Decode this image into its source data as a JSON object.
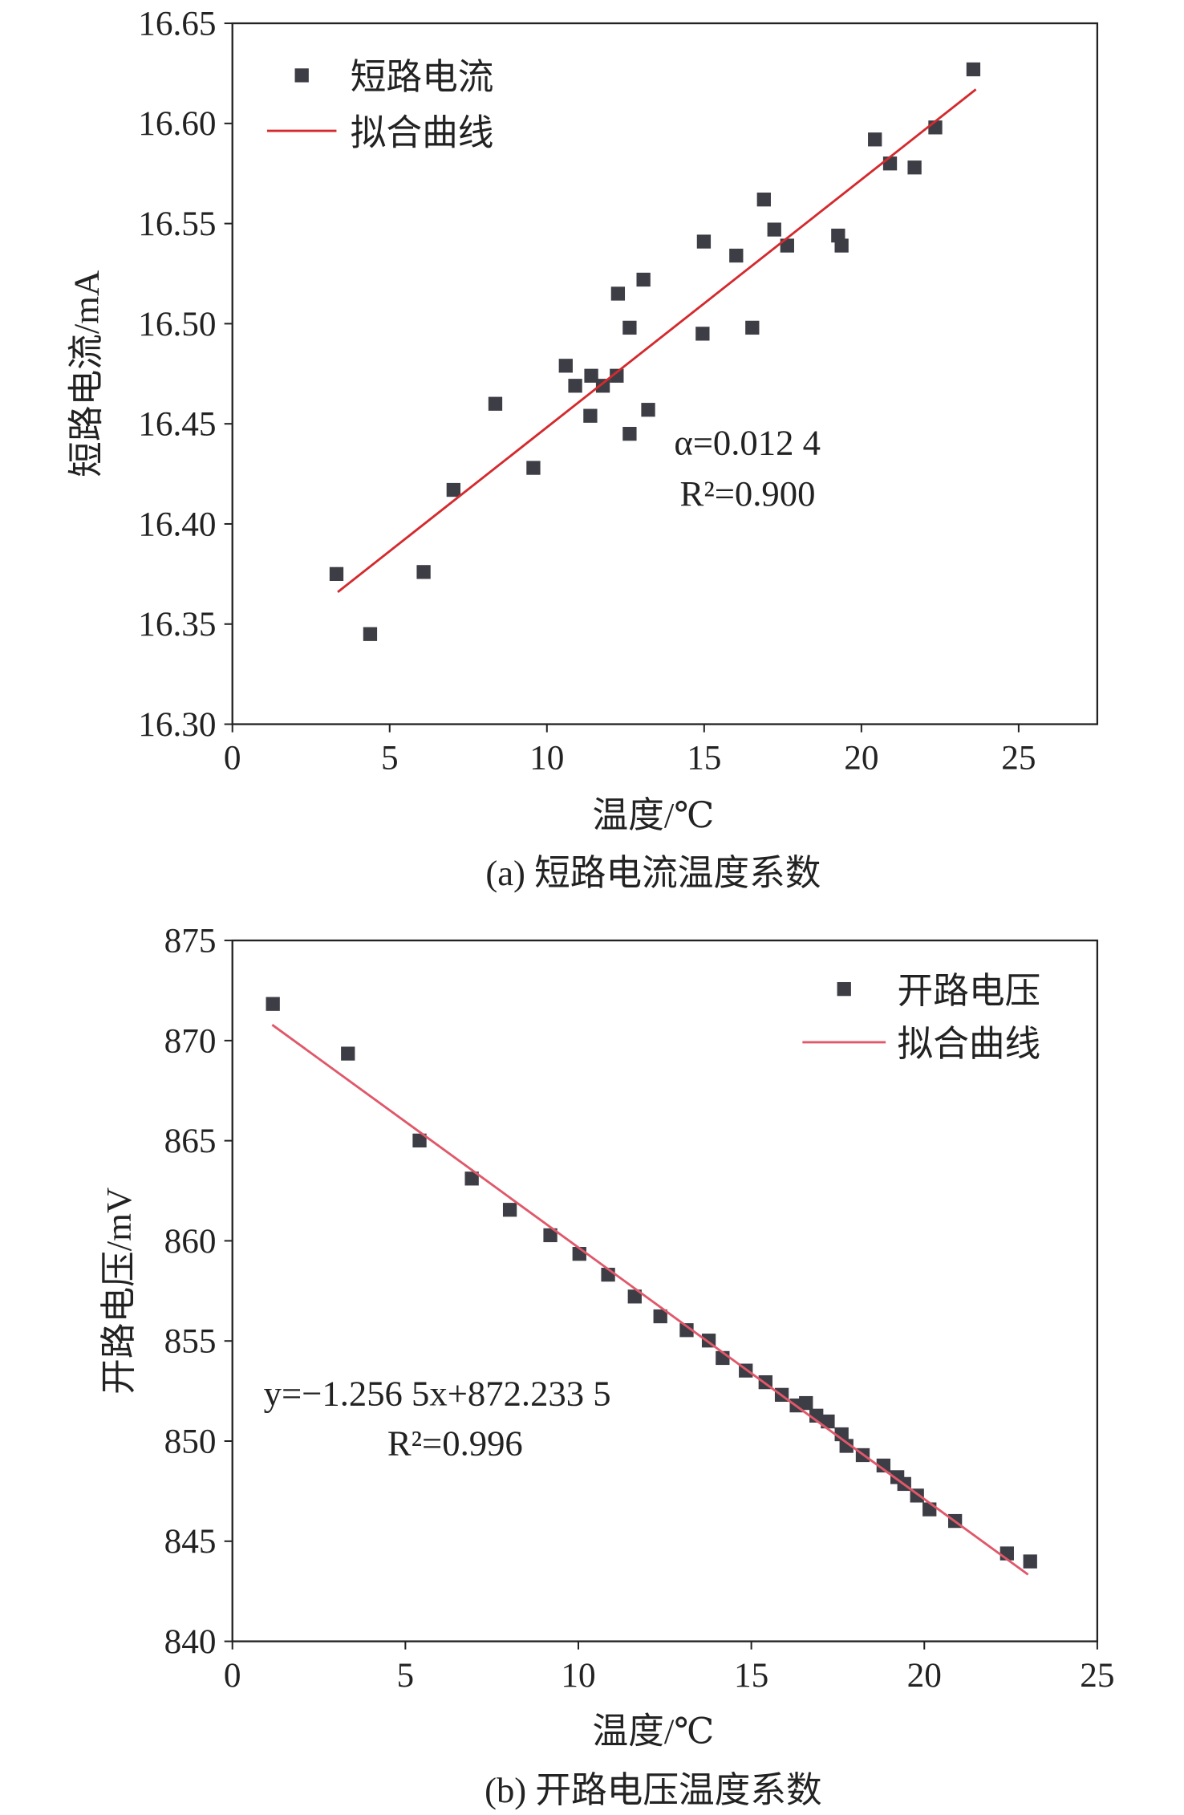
{
  "chart_data": [
    {
      "type": "scatter",
      "caption": "(a) 短路电流温度系数",
      "xlabel": "温度/℃",
      "ylabel": "短路电流/mA",
      "xlim": [
        0,
        27.5
      ],
      "ylim": [
        16.3,
        16.65
      ],
      "xticks": [
        0,
        5,
        10,
        15,
        20,
        25
      ],
      "xtick_labels": [
        "0",
        "5",
        "10",
        "15",
        "20",
        "25"
      ],
      "yticks": [
        16.3,
        16.35,
        16.4,
        16.45,
        16.5,
        16.55,
        16.6,
        16.65
      ],
      "ytick_labels": [
        "16.30",
        "16.35",
        "16.40",
        "16.45",
        "16.50",
        "16.55",
        "16.60",
        "16.65"
      ],
      "legend_position": "top-left",
      "grid": false,
      "series": [
        {
          "name": "短路电流",
          "kind": "scatter",
          "color": "#3d3d45",
          "x": [
            3.31,
            4.38,
            6.08,
            7.03,
            8.36,
            9.57,
            10.6,
            10.9,
            11.41,
            11.38,
            11.78,
            12.22,
            12.26,
            12.63,
            12.63,
            13.07,
            13.22,
            14.95,
            14.99,
            16.02,
            16.53,
            16.9,
            17.23,
            17.64,
            19.26,
            19.37,
            20.43,
            20.91,
            21.69,
            22.35,
            23.56
          ],
          "y": [
            16.375,
            16.345,
            16.376,
            16.417,
            16.46,
            16.428,
            16.479,
            16.469,
            16.474,
            16.454,
            16.469,
            16.474,
            16.515,
            16.498,
            16.445,
            16.522,
            16.457,
            16.495,
            16.541,
            16.534,
            16.498,
            16.562,
            16.547,
            16.539,
            16.544,
            16.539,
            16.592,
            16.58,
            16.578,
            16.598,
            16.627
          ]
        },
        {
          "name": "拟合曲线",
          "kind": "line",
          "color": "#d42a2e",
          "x": [
            3.35,
            23.64
          ],
          "y": [
            16.366,
            16.617
          ]
        }
      ],
      "annotations": [
        "α=0.012 4",
        "R²=0.900"
      ]
    },
    {
      "type": "scatter",
      "caption": "(b) 开路电压温度系数",
      "xlabel": "温度/℃",
      "ylabel": "开路电压/mV",
      "xlim": [
        0,
        25
      ],
      "ylim": [
        840,
        875
      ],
      "xticks": [
        0,
        5,
        10,
        15,
        20,
        25
      ],
      "xtick_labels": [
        "0",
        "5",
        "10",
        "15",
        "20",
        "25"
      ],
      "yticks": [
        840,
        845,
        850,
        855,
        860,
        865,
        870,
        875
      ],
      "ytick_labels": [
        "840",
        "845",
        "850",
        "855",
        "860",
        "865",
        "870",
        "875"
      ],
      "legend_position": "top-right",
      "grid": false,
      "series": [
        {
          "name": "开路电压",
          "kind": "scatter",
          "color": "#3d3d45",
          "x": [
            1.17,
            3.34,
            5.41,
            6.92,
            8.02,
            9.19,
            10.03,
            10.86,
            11.63,
            12.37,
            13.13,
            13.77,
            14.17,
            14.84,
            15.41,
            15.88,
            16.31,
            16.58,
            16.88,
            17.21,
            17.61,
            17.75,
            18.22,
            18.82,
            19.22,
            19.42,
            19.79,
            20.15,
            20.89,
            22.39,
            23.06
          ],
          "y": [
            871.83,
            869.35,
            865.01,
            863.11,
            861.55,
            860.28,
            859.35,
            858.31,
            857.22,
            856.23,
            855.54,
            855.02,
            854.15,
            853.52,
            852.94,
            852.31,
            851.78,
            851.9,
            851.27,
            850.98,
            850.34,
            849.76,
            849.3,
            848.78,
            848.2,
            847.86,
            847.28,
            846.59,
            846.01,
            844.39,
            843.99
          ]
        },
        {
          "name": "拟合曲线",
          "kind": "line",
          "color": "#e0586a",
          "x": [
            1.15,
            23.0
          ],
          "y": [
            870.789,
            843.334
          ]
        }
      ],
      "annotations": [
        "y=−1.256 5x+872.233 5",
        "R²=0.996"
      ]
    }
  ]
}
